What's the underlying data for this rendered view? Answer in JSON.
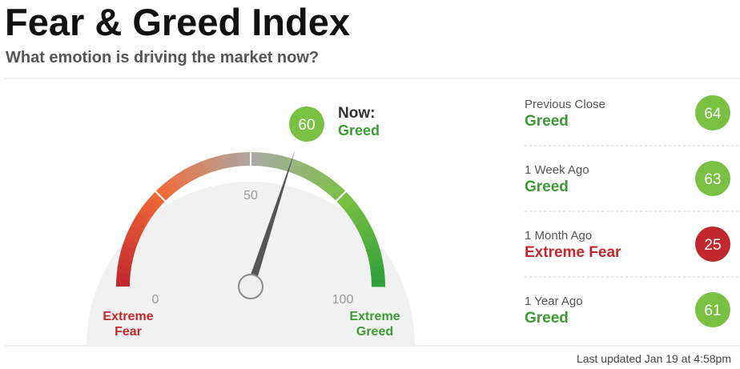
{
  "header": {
    "title": "Fear & Greed Index",
    "subtitle": "What emotion is driving the market now?"
  },
  "gauge": {
    "min": 0,
    "mid": 50,
    "max": 100,
    "value": 60,
    "now_label": "Now:",
    "rating": "Greed",
    "rating_color": "#3d9b35",
    "value_color": "#7ac143",
    "min_label": "Extreme Fear",
    "max_label": "Extreme Greed",
    "min_color": "#c0282d",
    "max_color": "#3d9b35"
  },
  "history": [
    {
      "label": "Previous Close",
      "rating": "Greed",
      "value": 64,
      "color": "#7ac143",
      "rating_color": "#3d9b35"
    },
    {
      "label": "1 Week Ago",
      "rating": "Greed",
      "value": 63,
      "color": "#7ac143",
      "rating_color": "#3d9b35"
    },
    {
      "label": "1 Month Ago",
      "rating": "Extreme Fear",
      "value": 25,
      "color": "#c0282d",
      "rating_color": "#c0282d"
    },
    {
      "label": "1 Year Ago",
      "rating": "Greed",
      "value": 61,
      "color": "#7ac143",
      "rating_color": "#3d9b35"
    }
  ],
  "footer": "Last updated Jan 19 at 4:58pm"
}
